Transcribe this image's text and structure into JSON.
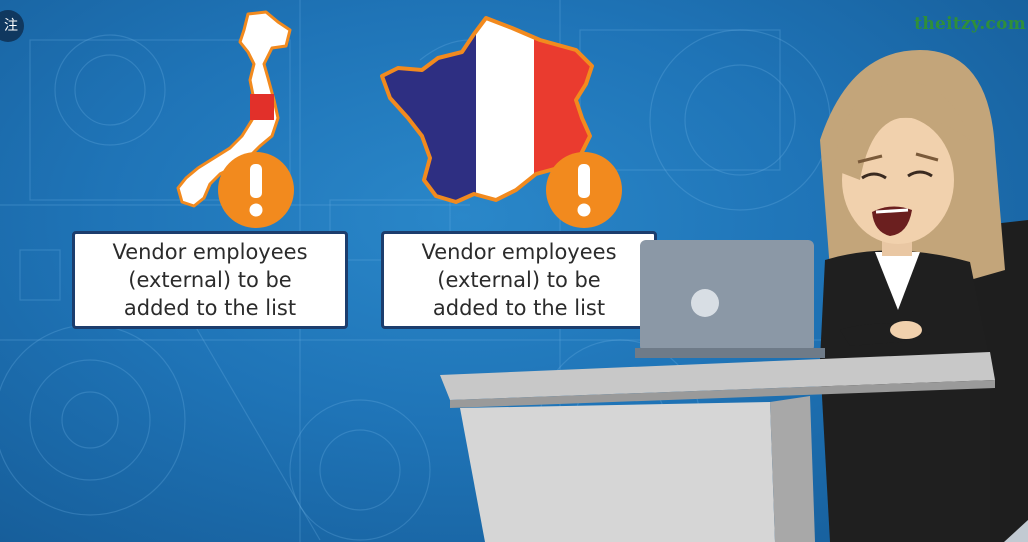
{
  "slide": {
    "background_color": "#1f74b7",
    "accent_orange": "#f28a1e",
    "panel_border": "#1c3d6d"
  },
  "cards": [
    {
      "country": "Japan",
      "icon": "exclamation-icon",
      "caption": "Vendor employees\n(external) to be\nadded to the list"
    },
    {
      "country": "France",
      "icon": "exclamation-icon",
      "caption": "Vendor employees\n(external) to be\nadded to the list"
    }
  ],
  "watermark": {
    "text": "theitzy.com"
  },
  "corner_badge": {
    "text": "注"
  },
  "character": {
    "description_icon": "worried-woman-at-desk-illustration"
  }
}
